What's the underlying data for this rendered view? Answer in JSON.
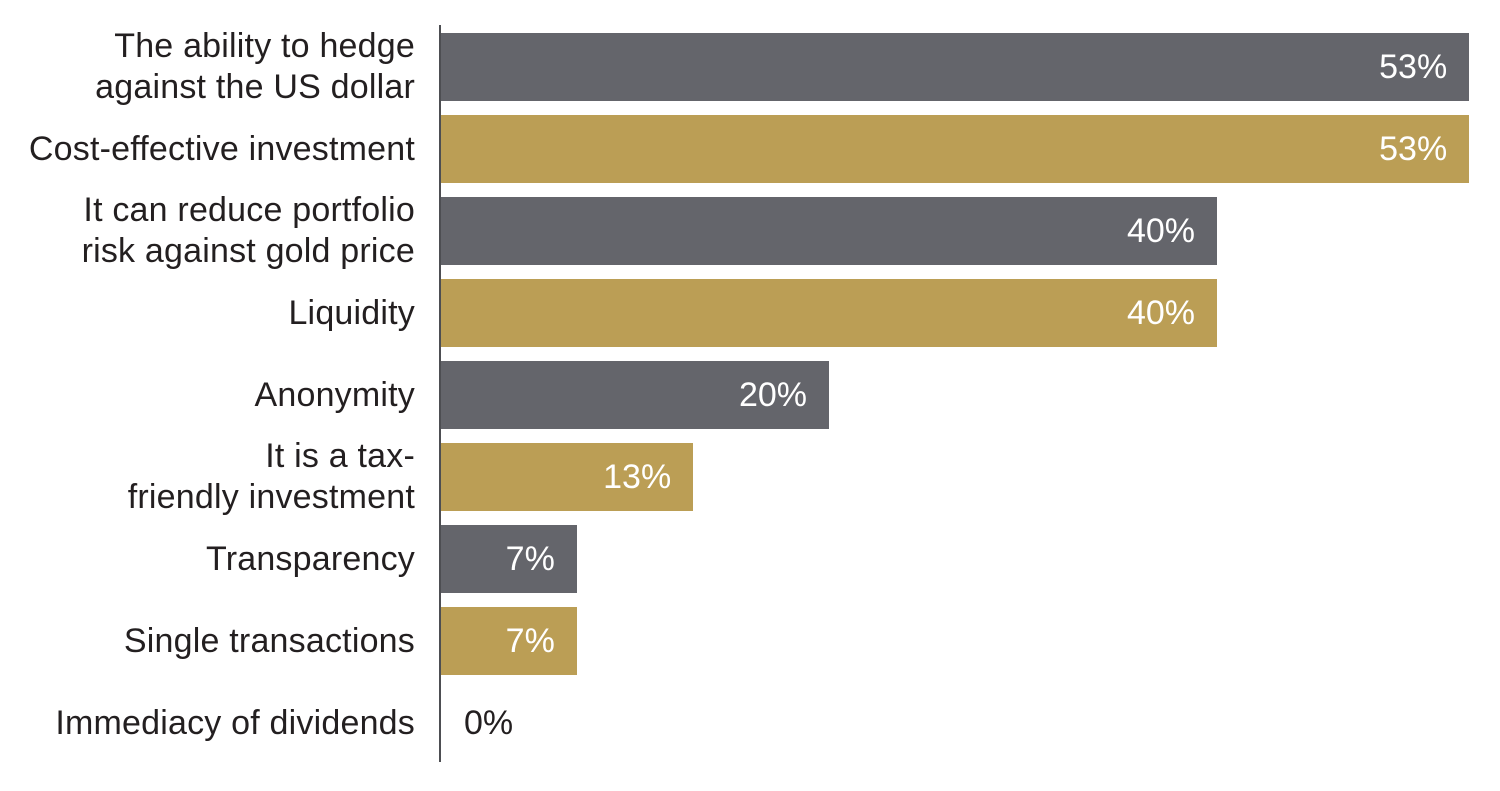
{
  "chart_data": {
    "type": "bar",
    "orientation": "horizontal",
    "title": "",
    "xlabel": "",
    "ylabel": "",
    "xlim": [
      0,
      55
    ],
    "grid": false,
    "legend": false,
    "categories": [
      "The ability to hedge against the US dollar",
      "Cost-effective investment",
      "It can reduce portfolio risk against gold price",
      "Liquidity",
      "Anonymity",
      "It is a tax-friendly investment",
      "Transparency",
      "Single transactions",
      "Immediacy of dividends"
    ],
    "values": [
      53,
      53,
      40,
      40,
      20,
      13,
      7,
      7,
      0
    ],
    "rows": [
      {
        "label": "The ability to hedge\nagainst the US dollar",
        "value": 53,
        "value_label": "53%",
        "color": "gray"
      },
      {
        "label": "Cost-effective investment",
        "value": 53,
        "value_label": "53%",
        "color": "gold"
      },
      {
        "label": "It can reduce portfolio\nrisk against gold price",
        "value": 40,
        "value_label": "40%",
        "color": "gray"
      },
      {
        "label": "Liquidity",
        "value": 40,
        "value_label": "40%",
        "color": "gold"
      },
      {
        "label": "Anonymity",
        "value": 20,
        "value_label": "20%",
        "color": "gray"
      },
      {
        "label": "It is a tax-\nfriendly investment",
        "value": 13,
        "value_label": "13%",
        "color": "gold"
      },
      {
        "label": "Transparency",
        "value": 7,
        "value_label": "7%",
        "color": "gray"
      },
      {
        "label": "Single transactions",
        "value": 7,
        "value_label": "7%",
        "color": "gold"
      },
      {
        "label": "Immediacy of dividends",
        "value": 0,
        "value_label": "0%",
        "color": "none"
      }
    ],
    "colors": {
      "gray": "#64656B",
      "gold": "#BB9E55",
      "axis": "#4D4E52",
      "label_text": "#231F20",
      "value_text": "#FFFFFF"
    }
  }
}
